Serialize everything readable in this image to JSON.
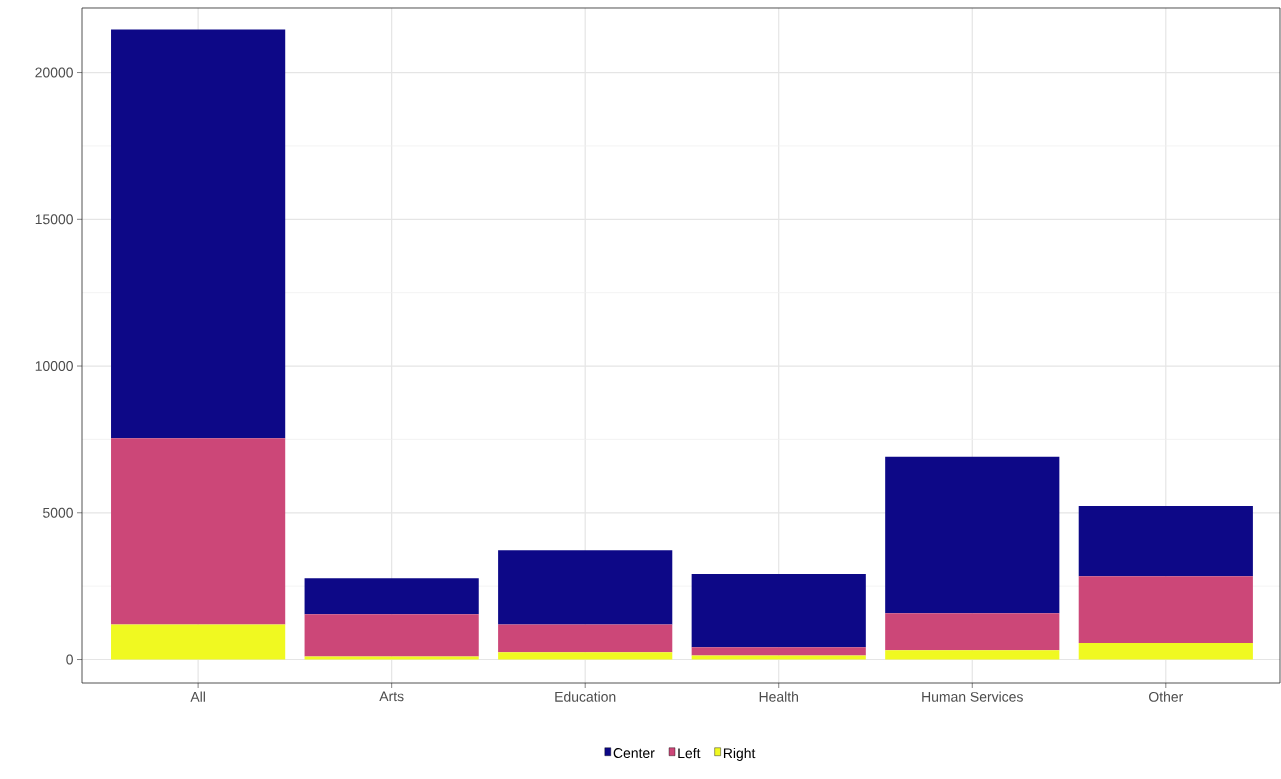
{
  "chart_data": {
    "type": "bar",
    "stacked": true,
    "categories": [
      "All",
      "Arts",
      "Education",
      "Health",
      "Human Services",
      "Other"
    ],
    "series": [
      {
        "name": "Right",
        "color": "#f0f921",
        "values": [
          1190,
          100,
          250,
          140,
          320,
          560
        ]
      },
      {
        "name": "Left",
        "color": "#cc4778",
        "values": [
          6350,
          1440,
          940,
          280,
          1260,
          2280
        ]
      },
      {
        "name": "Center",
        "color": "#0d0887",
        "values": [
          13930,
          1230,
          2530,
          2490,
          5330,
          2390
        ]
      }
    ],
    "ylim": [
      -800,
      22200
    ],
    "yticks": [
      0,
      5000,
      10000,
      15000,
      20000
    ],
    "grid": true,
    "legend": "bottom"
  }
}
